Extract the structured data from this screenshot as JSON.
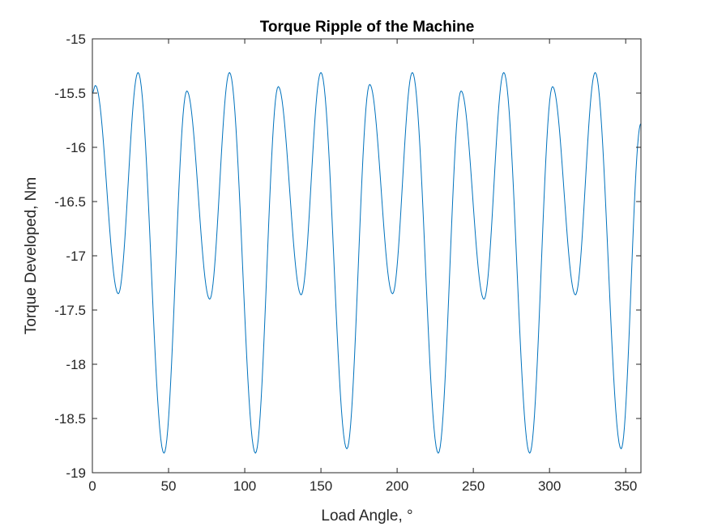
{
  "chart_data": {
    "type": "line",
    "title": "Torque Ripple of the Machine",
    "xlabel": "Load Angle, °",
    "ylabel": "Torque Developed, Nm",
    "xlim": [
      0,
      360
    ],
    "ylim": [
      -19,
      -15
    ],
    "xticks": [
      0,
      50,
      100,
      150,
      200,
      250,
      300,
      350
    ],
    "yticks": [
      -15,
      -15.5,
      -16,
      -16.5,
      -17,
      -17.5,
      -18,
      -18.5,
      -19
    ],
    "xtick_labels": [
      "0",
      "50",
      "100",
      "150",
      "200",
      "250",
      "300",
      "350"
    ],
    "ytick_labels": [
      "-15",
      "-15.5",
      "-16",
      "-16.5",
      "-17",
      "-17.5",
      "-18",
      "-18.5",
      "-19"
    ],
    "grid": false,
    "series": [
      {
        "color": "#0072BD",
        "x": [
          0,
          2,
          17,
          30,
          47,
          62,
          77,
          90,
          107,
          122,
          137,
          150,
          167,
          182,
          197,
          210,
          227,
          242,
          257,
          270,
          287,
          302,
          317,
          330,
          347,
          360
        ],
        "y": [
          -15.5,
          -15.43,
          -17.35,
          -15.31,
          -18.82,
          -15.48,
          -17.4,
          -15.31,
          -18.82,
          -15.44,
          -17.36,
          -15.31,
          -18.78,
          -15.42,
          -17.35,
          -15.31,
          -18.82,
          -15.48,
          -17.4,
          -15.31,
          -18.82,
          -15.44,
          -17.36,
          -15.31,
          -18.78,
          -15.78
        ]
      }
    ]
  }
}
